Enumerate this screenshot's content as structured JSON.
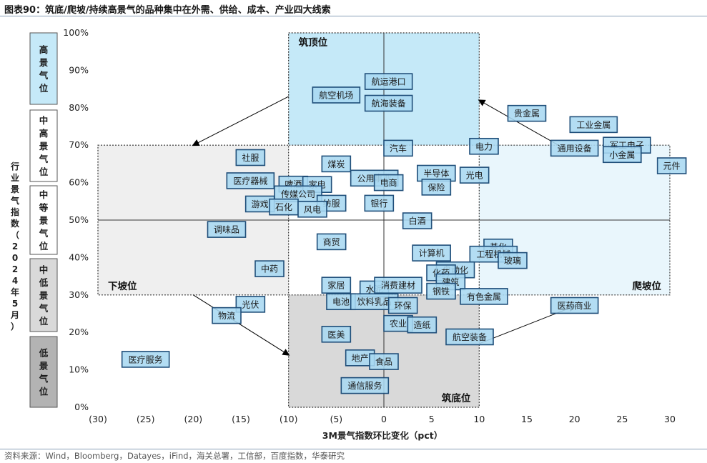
{
  "title": "图表90：筑底/爬坡/持续高景气的品种集中在外需、供给、成本、产业四大线索",
  "source": "资料来源：Wind，Bloomberg，Datayes，iFind，海关总署，工信部，百度指数，华泰研究",
  "ylabel_chars": [
    "行",
    "业",
    "景",
    "气",
    "指",
    "数",
    "（",
    "2",
    "0",
    "2",
    "4",
    "年",
    "5",
    "月",
    "）"
  ],
  "levels": [
    {
      "label": "高景气位",
      "color": "#c5e9f8"
    },
    {
      "label": "中高景气位",
      "color": "#ffffff"
    },
    {
      "label": "中等景气位",
      "color": "#ffffff"
    },
    {
      "label": "中低景气位",
      "color": "#d9d9d9"
    },
    {
      "label": "低景气位",
      "color": "#b3b3b3"
    }
  ],
  "chart_data": {
    "type": "scatter",
    "title": "图表90：筑底/爬坡/持续高景气的品种集中在外需、供给、成本、产业四大线索",
    "xlabel": "3M景气指数环比变化（pct）",
    "ylabel": "行业景气指数（2024年5月）",
    "xlim": [
      -30,
      30
    ],
    "ylim": [
      0,
      100
    ],
    "x_ticks": [
      -30,
      -25,
      -20,
      -15,
      -10,
      -5,
      0,
      5,
      10,
      15,
      20,
      25,
      30
    ],
    "x_tick_labels": [
      "(30)",
      "(25)",
      "(20)",
      "(15)",
      "(10)",
      "(5)",
      "0",
      "5",
      "10",
      "15",
      "20",
      "25",
      "30"
    ],
    "y_ticks": [
      0,
      10,
      20,
      30,
      40,
      50,
      60,
      70,
      80,
      90,
      100
    ],
    "y_tick_labels": [
      "0%",
      "10%",
      "20%",
      "30%",
      "40%",
      "50%",
      "60%",
      "70%",
      "80%",
      "90%",
      "100%"
    ],
    "grid": false,
    "zones": [
      {
        "name": "筑顶位",
        "x": [
          -10,
          10
        ],
        "y": [
          70,
          100
        ],
        "color": "#c5e9f8",
        "label_pos": "top-left"
      },
      {
        "name": "下坡位",
        "x": [
          -30,
          -10
        ],
        "y": [
          30,
          70
        ],
        "color": "#efefef",
        "label_pos": "bottom-left"
      },
      {
        "name": "爬坡位",
        "x": [
          10,
          30
        ],
        "y": [
          30,
          70
        ],
        "color": "#e9f6fc",
        "label_pos": "bottom-right"
      },
      {
        "name": "筑底位",
        "x": [
          -10,
          10
        ],
        "y": [
          0,
          30
        ],
        "color": "#d9d9d9",
        "label_pos": "bottom-right"
      }
    ],
    "points": [
      {
        "name": "航空机场",
        "x": -5.0,
        "y": 83.4
      },
      {
        "name": "航运港口",
        "x": 0.5,
        "y": 87.0
      },
      {
        "name": "航海装备",
        "x": 0.5,
        "y": 81.2
      },
      {
        "name": "贵金属",
        "x": 15.0,
        "y": 78.5
      },
      {
        "name": "工业金属",
        "x": 22.0,
        "y": 75.5
      },
      {
        "name": "汽车",
        "x": 1.5,
        "y": 69.2
      },
      {
        "name": "电力",
        "x": 10.5,
        "y": 69.7
      },
      {
        "name": "通用设备",
        "x": 20.0,
        "y": 69.2
      },
      {
        "name": "军工电子",
        "x": 25.5,
        "y": 70.0
      },
      {
        "name": "小金属",
        "x": 25.0,
        "y": 67.5
      },
      {
        "name": "元件",
        "x": 30.2,
        "y": 64.5
      },
      {
        "name": "社服",
        "x": -14.0,
        "y": 66.7
      },
      {
        "name": "煤炭",
        "x": -5.0,
        "y": 65.0
      },
      {
        "name": "公用事业",
        "x": -1.0,
        "y": 61.2
      },
      {
        "name": "半导体",
        "x": 5.5,
        "y": 62.5
      },
      {
        "name": "光电",
        "x": 9.5,
        "y": 62.0
      },
      {
        "name": "医疗器械",
        "x": -14.0,
        "y": 60.5
      },
      {
        "name": "电商",
        "x": 0.5,
        "y": 60.0
      },
      {
        "name": "保险",
        "x": 5.5,
        "y": 58.8
      },
      {
        "name": "啤酒",
        "x": -9.5,
        "y": 59.6
      },
      {
        "name": "家电",
        "x": -7.0,
        "y": 59.5
      },
      {
        "name": "传媒公司",
        "x": -9.0,
        "y": 57.0
      },
      {
        "name": "游戏",
        "x": -13.0,
        "y": 54.3
      },
      {
        "name": "石化",
        "x": -10.5,
        "y": 53.5
      },
      {
        "name": "纺服",
        "x": -5.5,
        "y": 54.5
      },
      {
        "name": "风电",
        "x": -7.5,
        "y": 52.9
      },
      {
        "name": "银行",
        "x": -0.5,
        "y": 54.5
      },
      {
        "name": "白酒",
        "x": 3.5,
        "y": 49.8
      },
      {
        "name": "调味品",
        "x": -16.5,
        "y": 47.5
      },
      {
        "name": "商贸",
        "x": -5.5,
        "y": 44.2
      },
      {
        "name": "计算机",
        "x": 5.0,
        "y": 41.2
      },
      {
        "name": "基化",
        "x": 12.0,
        "y": 42.8
      },
      {
        "name": "工程机械",
        "x": 11.5,
        "y": 40.9
      },
      {
        "name": "玻璃",
        "x": 13.5,
        "y": 39.2
      },
      {
        "name": "自动化",
        "x": 7.5,
        "y": 36.7
      },
      {
        "name": "化药",
        "x": 6.0,
        "y": 35.9
      },
      {
        "name": "建筑",
        "x": 7.0,
        "y": 33.5
      },
      {
        "name": "中药",
        "x": -12.0,
        "y": 37.0
      },
      {
        "name": "家居",
        "x": -5.0,
        "y": 32.6
      },
      {
        "name": "水泥",
        "x": -1.0,
        "y": 31.6
      },
      {
        "name": "消费建材",
        "x": 1.5,
        "y": 32.6
      },
      {
        "name": "钢铁",
        "x": 6.0,
        "y": 31.0
      },
      {
        "name": "有色金属",
        "x": 10.5,
        "y": 29.6
      },
      {
        "name": "光伏",
        "x": -14.0,
        "y": 27.5
      },
      {
        "name": "电池",
        "x": -4.5,
        "y": 28.2
      },
      {
        "name": "饮料乳品",
        "x": -1.0,
        "y": 28.2
      },
      {
        "name": "环保",
        "x": 2.0,
        "y": 27.2
      },
      {
        "name": "医药商业",
        "x": 20.0,
        "y": 27.2
      },
      {
        "name": "物流",
        "x": -16.5,
        "y": 24.5
      },
      {
        "name": "农业",
        "x": 1.5,
        "y": 22.4
      },
      {
        "name": "造纸",
        "x": 4.0,
        "y": 22.0
      },
      {
        "name": "医美",
        "x": -5.0,
        "y": 19.5
      },
      {
        "name": "航空装备",
        "x": 9.0,
        "y": 18.8
      },
      {
        "name": "地产",
        "x": -2.5,
        "y": 13.2
      },
      {
        "name": "食品",
        "x": 0.0,
        "y": 12.2
      },
      {
        "name": "医疗服务",
        "x": -25.0,
        "y": 12.8
      },
      {
        "name": "通信服务",
        "x": -2.0,
        "y": 5.8
      }
    ],
    "arrows": [
      {
        "from": [
          -10,
          83
        ],
        "to": [
          -20,
          70
        ]
      },
      {
        "from": [
          -20,
          30
        ],
        "to": [
          -10,
          14
        ]
      },
      {
        "from": [
          10,
          17
        ],
        "to": [
          20,
          27
        ]
      },
      {
        "from": [
          19,
          69
        ],
        "to": [
          10,
          82
        ]
      }
    ]
  }
}
